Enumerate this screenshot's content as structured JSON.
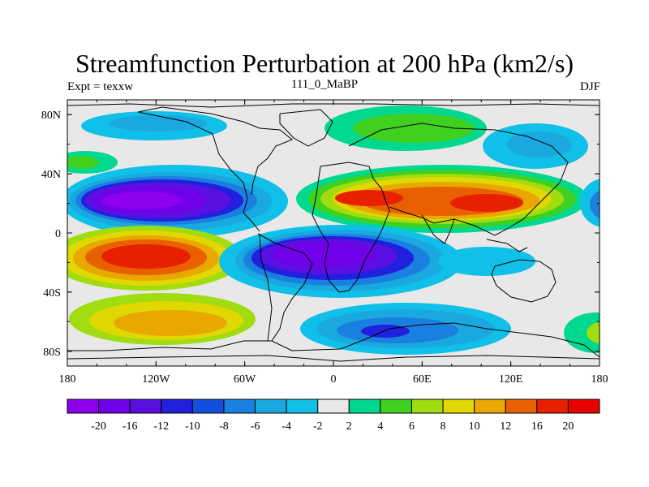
{
  "title": "Streamfunction Perturbation at 200 hPa (km2/s)",
  "subtitle_left": "Expt = texxw",
  "subtitle_center": "111_0_MaBP",
  "subtitle_right": "DJF",
  "x_ticks": [
    "180",
    "120W",
    "60W",
    "0",
    "60E",
    "120E",
    "180"
  ],
  "y_ticks": [
    "80N",
    "40N",
    "0",
    "40S",
    "80S"
  ],
  "colorbar": {
    "labels": [
      "-20",
      "-16",
      "-12",
      "-10",
      "-8",
      "-6",
      "-4",
      "-2",
      "2",
      "4",
      "6",
      "8",
      "10",
      "12",
      "16",
      "20"
    ],
    "colors": [
      "#8c00ee",
      "#7000e8",
      "#5a10e0",
      "#2020dd",
      "#1050dd",
      "#1a80e0",
      "#1aa8e0",
      "#10c0e8",
      "#e8e8e8",
      "#00d890",
      "#40d020",
      "#a0dc10",
      "#e0d800",
      "#e8a800",
      "#e86000",
      "#e82000",
      "#e80000"
    ]
  }
}
